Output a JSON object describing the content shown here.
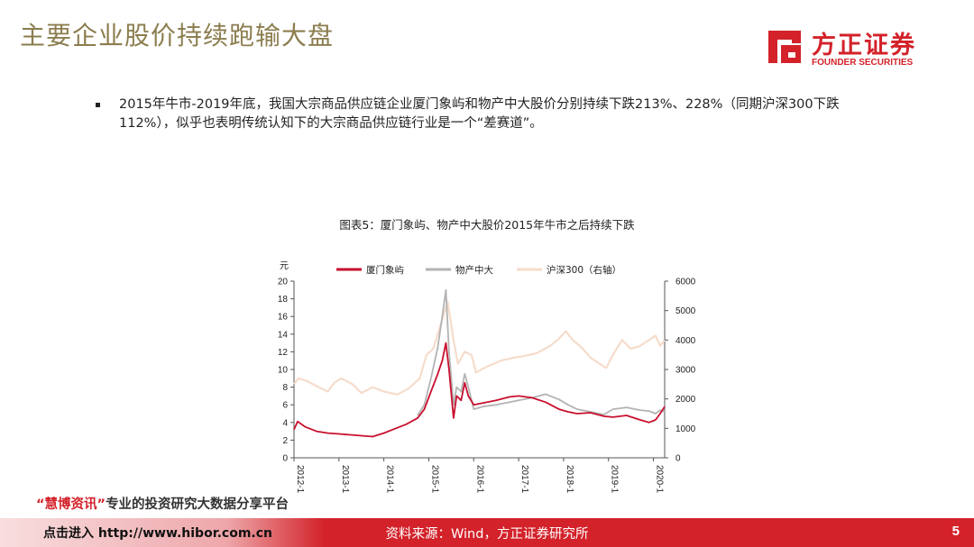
{
  "page": {
    "title": "主要企业股价持续跑输大盘",
    "bullet": "2015年牛市-2019年底，我国大宗商品供应链企业厦门象屿和物产中大股价分别持续下跌213%、228%（同期沪深300下跌112%），似乎也表明传统认知下的大宗商品供应链行业是一个“差赛道”。",
    "chart_caption": "图表5：厦门象屿、物产中大股价2015年牛市之后持续下跌",
    "watermark_prefix": "“慧博资讯”",
    "watermark_rest": "专业的投资研究大数据分享平台",
    "footer_left": "点击进入 http://www.hibor.com.cn",
    "source": "资料来源：Wind，方正证券研究所",
    "page_number": "5"
  },
  "logo": {
    "cn": "方正证券",
    "en": "FOUNDER SECURITIES",
    "color": "#d3222a"
  },
  "chart_data": {
    "type": "line",
    "ylabel_left": "元",
    "ylim_left": [
      0,
      20
    ],
    "yticks_left": [
      0,
      2,
      4,
      6,
      8,
      10,
      12,
      14,
      16,
      18,
      20
    ],
    "ylim_right": [
      0,
      6000
    ],
    "yticks_right": [
      0,
      1000,
      2000,
      3000,
      4000,
      5000,
      6000
    ],
    "xlim": [
      2012.0,
      2020.25
    ],
    "xticks": [
      {
        "x": 2012.0,
        "label": "2012-1"
      },
      {
        "x": 2013.0,
        "label": "2013-1"
      },
      {
        "x": 2014.0,
        "label": "2014-1"
      },
      {
        "x": 2015.0,
        "label": "2015-1"
      },
      {
        "x": 2016.0,
        "label": "2016-1"
      },
      {
        "x": 2017.0,
        "label": "2017-1"
      },
      {
        "x": 2018.0,
        "label": "2018-1"
      },
      {
        "x": 2019.0,
        "label": "2019-1"
      },
      {
        "x": 2020.0,
        "label": "2020-1"
      }
    ],
    "legend_position": "top",
    "series": [
      {
        "name": "厦门象屿",
        "axis": "left",
        "color": "#c8102e",
        "points": [
          [
            2012.0,
            3.2
          ],
          [
            2012.08,
            4.1
          ],
          [
            2012.25,
            3.5
          ],
          [
            2012.5,
            3.0
          ],
          [
            2012.75,
            2.8
          ],
          [
            2013.0,
            2.7
          ],
          [
            2013.25,
            2.6
          ],
          [
            2013.5,
            2.5
          ],
          [
            2013.75,
            2.4
          ],
          [
            2014.0,
            2.8
          ],
          [
            2014.25,
            3.3
          ],
          [
            2014.5,
            3.8
          ],
          [
            2014.75,
            4.5
          ],
          [
            2014.9,
            5.5
          ],
          [
            2015.05,
            7.5
          ],
          [
            2015.2,
            9.5
          ],
          [
            2015.3,
            11.0
          ],
          [
            2015.38,
            13.0
          ],
          [
            2015.45,
            10.0
          ],
          [
            2015.55,
            4.5
          ],
          [
            2015.62,
            7.0
          ],
          [
            2015.72,
            6.5
          ],
          [
            2015.8,
            8.5
          ],
          [
            2015.88,
            7.0
          ],
          [
            2016.0,
            6.0
          ],
          [
            2016.2,
            6.2
          ],
          [
            2016.5,
            6.5
          ],
          [
            2016.8,
            6.9
          ],
          [
            2017.0,
            7.0
          ],
          [
            2017.3,
            6.8
          ],
          [
            2017.6,
            6.3
          ],
          [
            2017.9,
            5.5
          ],
          [
            2018.1,
            5.2
          ],
          [
            2018.3,
            5.0
          ],
          [
            2018.6,
            5.1
          ],
          [
            2018.9,
            4.7
          ],
          [
            2019.1,
            4.6
          ],
          [
            2019.4,
            4.8
          ],
          [
            2019.7,
            4.3
          ],
          [
            2019.9,
            4.0
          ],
          [
            2020.05,
            4.3
          ],
          [
            2020.15,
            5.0
          ],
          [
            2020.25,
            5.8
          ]
        ]
      },
      {
        "name": "物产中大",
        "axis": "left",
        "color": "#b3b3b3",
        "points": [
          [
            2014.75,
            4.8
          ],
          [
            2014.9,
            6.0
          ],
          [
            2015.05,
            9.0
          ],
          [
            2015.2,
            12.5
          ],
          [
            2015.3,
            16.0
          ],
          [
            2015.38,
            19.0
          ],
          [
            2015.45,
            12.0
          ],
          [
            2015.55,
            6.0
          ],
          [
            2015.62,
            8.0
          ],
          [
            2015.72,
            7.5
          ],
          [
            2015.8,
            9.5
          ],
          [
            2015.88,
            8.0
          ],
          [
            2016.0,
            5.5
          ],
          [
            2016.2,
            5.8
          ],
          [
            2016.5,
            6.0
          ],
          [
            2016.8,
            6.3
          ],
          [
            2017.0,
            6.5
          ],
          [
            2017.3,
            6.8
          ],
          [
            2017.6,
            7.2
          ],
          [
            2017.9,
            6.6
          ],
          [
            2018.1,
            6.0
          ],
          [
            2018.3,
            5.5
          ],
          [
            2018.6,
            5.2
          ],
          [
            2018.9,
            4.9
          ],
          [
            2019.1,
            5.5
          ],
          [
            2019.4,
            5.7
          ],
          [
            2019.7,
            5.4
          ],
          [
            2019.9,
            5.3
          ],
          [
            2020.05,
            5.0
          ],
          [
            2020.15,
            5.4
          ],
          [
            2020.25,
            5.2
          ]
        ]
      },
      {
        "name": "沪深300（右轴）",
        "axis": "right",
        "color": "#f6dccb",
        "points": [
          [
            2012.0,
            2500
          ],
          [
            2012.1,
            2700
          ],
          [
            2012.3,
            2600
          ],
          [
            2012.55,
            2400
          ],
          [
            2012.75,
            2250
          ],
          [
            2012.9,
            2550
          ],
          [
            2013.05,
            2700
          ],
          [
            2013.3,
            2500
          ],
          [
            2013.5,
            2200
          ],
          [
            2013.75,
            2400
          ],
          [
            2014.0,
            2250
          ],
          [
            2014.3,
            2150
          ],
          [
            2014.55,
            2350
          ],
          [
            2014.8,
            2700
          ],
          [
            2014.95,
            3500
          ],
          [
            2015.1,
            3700
          ],
          [
            2015.3,
            4700
          ],
          [
            2015.42,
            5300
          ],
          [
            2015.55,
            4000
          ],
          [
            2015.65,
            3200
          ],
          [
            2015.8,
            3600
          ],
          [
            2015.95,
            3500
          ],
          [
            2016.05,
            2900
          ],
          [
            2016.3,
            3100
          ],
          [
            2016.6,
            3300
          ],
          [
            2016.9,
            3400
          ],
          [
            2017.1,
            3450
          ],
          [
            2017.4,
            3550
          ],
          [
            2017.7,
            3800
          ],
          [
            2017.9,
            4050
          ],
          [
            2018.05,
            4300
          ],
          [
            2018.2,
            4000
          ],
          [
            2018.4,
            3750
          ],
          [
            2018.6,
            3400
          ],
          [
            2018.8,
            3200
          ],
          [
            2018.95,
            3050
          ],
          [
            2019.1,
            3500
          ],
          [
            2019.3,
            4000
          ],
          [
            2019.5,
            3700
          ],
          [
            2019.7,
            3800
          ],
          [
            2019.9,
            4000
          ],
          [
            2020.05,
            4150
          ],
          [
            2020.15,
            3800
          ],
          [
            2020.25,
            4000
          ]
        ]
      }
    ]
  }
}
